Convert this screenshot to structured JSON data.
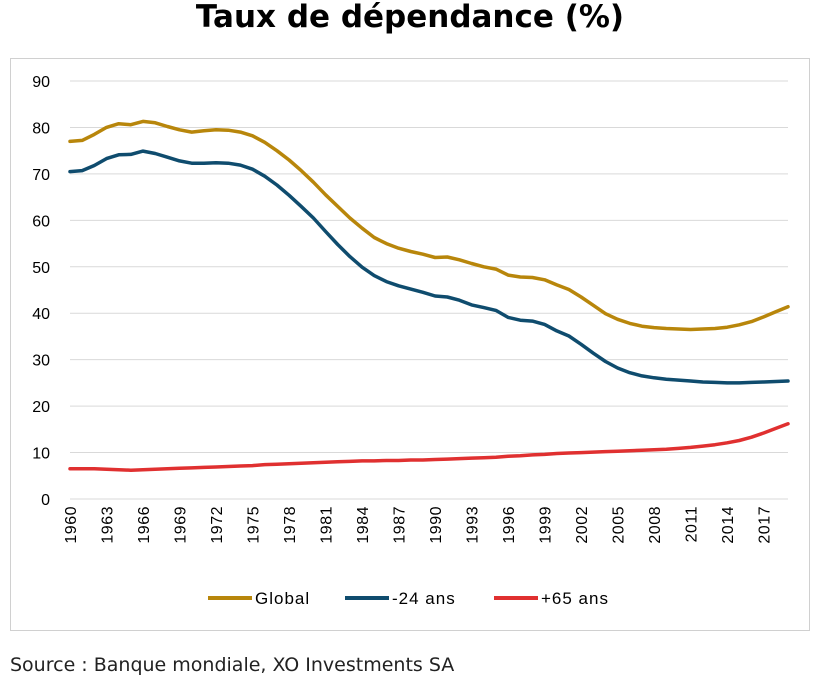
{
  "title": "Taux de dépendance (%)",
  "source": "Source : Banque mondiale, XO Investments SA",
  "chart_data": {
    "type": "line",
    "title": "Taux de dépendance (%)",
    "xlabel": "",
    "ylabel": "",
    "ylim": [
      0,
      90
    ],
    "yticks": [
      0,
      10,
      20,
      30,
      40,
      50,
      60,
      70,
      80,
      90
    ],
    "xlim": [
      1960,
      2019
    ],
    "x_tick_labels": [
      "1960",
      "1963",
      "1966",
      "1969",
      "1972",
      "1975",
      "1978",
      "1981",
      "1984",
      "1987",
      "1990",
      "1993",
      "1996",
      "1999",
      "2002",
      "2005",
      "2008",
      "2011",
      "2014",
      "2017"
    ],
    "grid": "horizontal",
    "legend_position": "bottom",
    "x": [
      1960,
      1961,
      1962,
      1963,
      1964,
      1965,
      1966,
      1967,
      1968,
      1969,
      1970,
      1971,
      1972,
      1973,
      1974,
      1975,
      1976,
      1977,
      1978,
      1979,
      1980,
      1981,
      1982,
      1983,
      1984,
      1985,
      1986,
      1987,
      1988,
      1989,
      1990,
      1991,
      1992,
      1993,
      1994,
      1995,
      1996,
      1997,
      1998,
      1999,
      2000,
      2001,
      2002,
      2003,
      2004,
      2005,
      2006,
      2007,
      2008,
      2009,
      2010,
      2011,
      2012,
      2013,
      2014,
      2015,
      2016,
      2017,
      2018,
      2019
    ],
    "series": [
      {
        "name": "Global",
        "color": "#b8860b",
        "values": [
          77,
          77.2,
          78.5,
          80,
          80.8,
          80.6,
          81.3,
          81,
          80.2,
          79.5,
          79,
          79.3,
          79.5,
          79.4,
          79,
          78.2,
          76.8,
          75,
          73,
          70.7,
          68.2,
          65.5,
          63,
          60.5,
          58.3,
          56.3,
          55,
          54,
          53.3,
          52.7,
          52,
          52.1,
          51.5,
          50.7,
          50,
          49.5,
          48.2,
          47.8,
          47.7,
          47.2,
          46.1,
          45.1,
          43.5,
          41.7,
          39.9,
          38.7,
          37.8,
          37.2,
          36.9,
          36.7,
          36.6,
          36.5,
          36.6,
          36.7,
          37,
          37.5,
          38.2,
          39.2,
          40.3,
          41.4
        ]
      },
      {
        "name": "-24 ans",
        "color": "#0f4c6e",
        "values": [
          70.5,
          70.7,
          71.8,
          73.3,
          74.1,
          74.2,
          74.9,
          74.4,
          73.6,
          72.8,
          72.3,
          72.3,
          72.4,
          72.3,
          71.9,
          71,
          69.5,
          67.6,
          65.4,
          63,
          60.5,
          57.6,
          54.8,
          52.2,
          49.9,
          48.1,
          46.8,
          45.9,
          45.2,
          44.5,
          43.7,
          43.5,
          42.8,
          41.8,
          41.2,
          40.6,
          39.1,
          38.5,
          38.3,
          37.6,
          36.2,
          35.1,
          33.3,
          31.4,
          29.6,
          28.2,
          27.2,
          26.5,
          26.1,
          25.8,
          25.6,
          25.4,
          25.2,
          25.1,
          25,
          25,
          25.1,
          25.2,
          25.3,
          25.4
        ]
      },
      {
        "name": "+65 ans",
        "color": "#e03030",
        "values": [
          6.5,
          6.5,
          6.5,
          6.4,
          6.3,
          6.2,
          6.3,
          6.4,
          6.5,
          6.6,
          6.7,
          6.8,
          6.9,
          7,
          7.1,
          7.2,
          7.4,
          7.5,
          7.6,
          7.7,
          7.8,
          7.9,
          8,
          8.1,
          8.2,
          8.2,
          8.3,
          8.3,
          8.4,
          8.4,
          8.5,
          8.6,
          8.7,
          8.8,
          8.9,
          9,
          9.2,
          9.3,
          9.5,
          9.6,
          9.8,
          9.9,
          10,
          10.1,
          10.2,
          10.3,
          10.4,
          10.5,
          10.6,
          10.7,
          10.9,
          11.1,
          11.4,
          11.7,
          12.1,
          12.6,
          13.3,
          14.2,
          15.2,
          16.2
        ]
      }
    ]
  }
}
